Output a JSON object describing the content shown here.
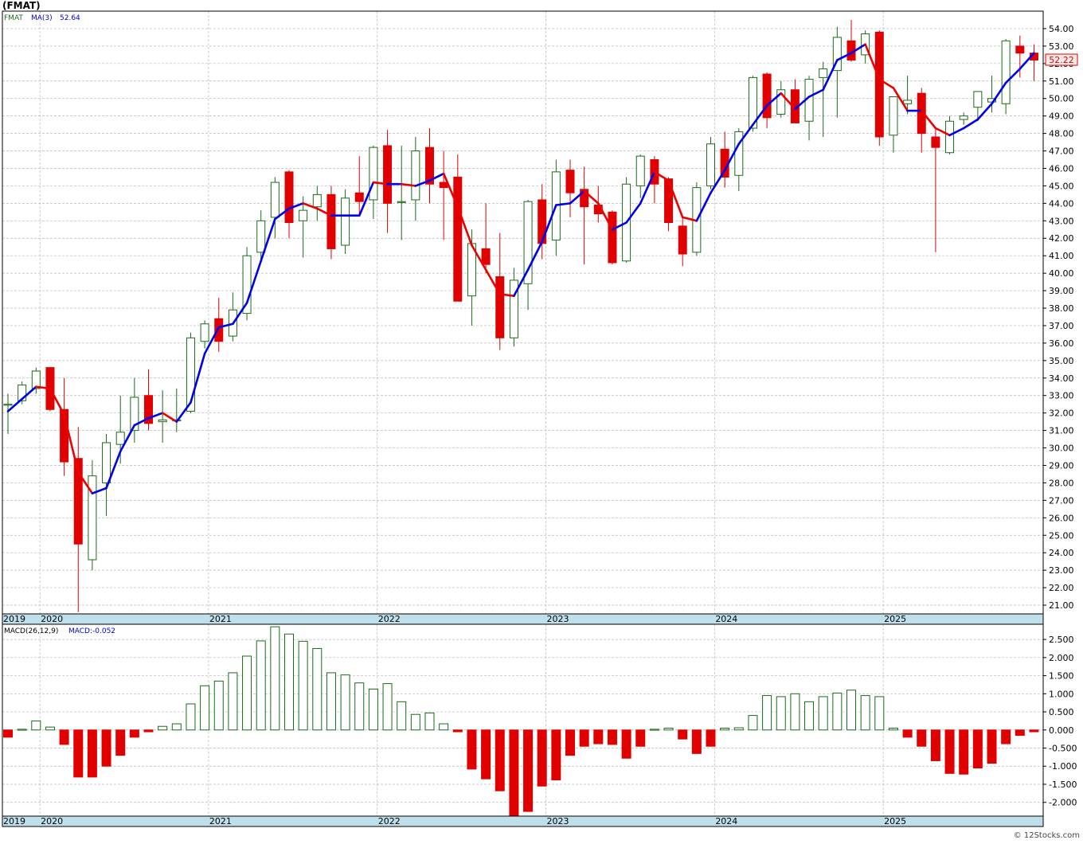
{
  "title": "(FMAT)",
  "credit": "© 12Stocks.com",
  "chart_data": [
    {
      "type": "candlestick",
      "panel": "price",
      "ticker_label": "FMAT",
      "indicator_label": "MA(3)",
      "indicator_value": "52.64",
      "last_price": "52.22",
      "y_ticks": [
        "21.00",
        "22.00",
        "23.00",
        "24.00",
        "25.00",
        "26.00",
        "27.00",
        "28.00",
        "29.00",
        "30.00",
        "31.00",
        "32.00",
        "33.00",
        "34.00",
        "35.00",
        "36.00",
        "37.00",
        "38.00",
        "39.00",
        "40.00",
        "41.00",
        "42.00",
        "43.00",
        "44.00",
        "45.00",
        "46.00",
        "47.00",
        "48.00",
        "49.00",
        "50.00",
        "51.00",
        "52.00",
        "53.00",
        "54.00"
      ],
      "ylim": [
        20.5,
        55.0
      ],
      "x_labels": [
        "2019",
        "2020",
        "2021",
        "2022",
        "2023",
        "2024",
        "2025"
      ],
      "x_label_index": [
        0,
        3,
        15,
        27,
        39,
        51,
        63
      ],
      "grid": true,
      "colors": {
        "up": "#1a6b1a",
        "down": "#e00000",
        "ma_up": "#0000ee",
        "ma_down": "#ee0000"
      },
      "candles": [
        {
          "o": 32.5,
          "h": 33.1,
          "l": 30.8,
          "c": 32.5
        },
        {
          "o": 32.7,
          "h": 33.8,
          "l": 32.5,
          "c": 33.6
        },
        {
          "o": 33.4,
          "h": 34.6,
          "l": 33.1,
          "c": 34.4
        },
        {
          "o": 34.6,
          "h": 34.6,
          "l": 32.1,
          "c": 32.2
        },
        {
          "o": 32.2,
          "h": 34.0,
          "l": 28.4,
          "c": 29.2
        },
        {
          "o": 29.4,
          "h": 31.2,
          "l": 20.6,
          "c": 24.5
        },
        {
          "o": 23.6,
          "h": 29.3,
          "l": 23.0,
          "c": 28.4
        },
        {
          "o": 28.0,
          "h": 30.8,
          "l": 26.1,
          "c": 30.3
        },
        {
          "o": 30.2,
          "h": 33.0,
          "l": 29.1,
          "c": 30.9
        },
        {
          "o": 31.0,
          "h": 34.0,
          "l": 30.3,
          "c": 32.9
        },
        {
          "o": 33.0,
          "h": 34.5,
          "l": 31.0,
          "c": 31.4
        },
        {
          "o": 31.5,
          "h": 33.3,
          "l": 30.3,
          "c": 31.6
        },
        {
          "o": 31.6,
          "h": 33.4,
          "l": 30.9,
          "c": 31.6
        },
        {
          "o": 32.1,
          "h": 36.6,
          "l": 32.0,
          "c": 36.3
        },
        {
          "o": 36.1,
          "h": 37.3,
          "l": 35.7,
          "c": 37.1
        },
        {
          "o": 37.4,
          "h": 38.6,
          "l": 35.5,
          "c": 36.1
        },
        {
          "o": 36.4,
          "h": 38.9,
          "l": 36.1,
          "c": 37.9
        },
        {
          "o": 37.7,
          "h": 41.5,
          "l": 37.3,
          "c": 41.0
        },
        {
          "o": 41.2,
          "h": 43.6,
          "l": 40.6,
          "c": 43.0
        },
        {
          "o": 43.2,
          "h": 45.5,
          "l": 42.0,
          "c": 45.2
        },
        {
          "o": 45.8,
          "h": 45.9,
          "l": 42.0,
          "c": 42.9
        },
        {
          "o": 43.0,
          "h": 44.4,
          "l": 40.9,
          "c": 43.6
        },
        {
          "o": 43.8,
          "h": 45.0,
          "l": 43.0,
          "c": 44.5
        },
        {
          "o": 44.5,
          "h": 45.0,
          "l": 40.8,
          "c": 41.4
        },
        {
          "o": 41.6,
          "h": 44.8,
          "l": 41.1,
          "c": 44.3
        },
        {
          "o": 44.6,
          "h": 46.7,
          "l": 43.3,
          "c": 44.1
        },
        {
          "o": 44.2,
          "h": 47.3,
          "l": 43.1,
          "c": 47.2
        },
        {
          "o": 47.3,
          "h": 48.2,
          "l": 42.3,
          "c": 44.0
        },
        {
          "o": 44.1,
          "h": 47.3,
          "l": 41.9,
          "c": 44.1
        },
        {
          "o": 44.2,
          "h": 47.8,
          "l": 43.0,
          "c": 47.0
        },
        {
          "o": 47.2,
          "h": 48.3,
          "l": 44.0,
          "c": 45.1
        },
        {
          "o": 45.2,
          "h": 47.0,
          "l": 41.9,
          "c": 44.9
        },
        {
          "o": 45.5,
          "h": 46.8,
          "l": 38.6,
          "c": 38.4
        },
        {
          "o": 38.7,
          "h": 42.5,
          "l": 37.0,
          "c": 41.7
        },
        {
          "o": 41.4,
          "h": 44.0,
          "l": 40.0,
          "c": 40.5
        },
        {
          "o": 39.8,
          "h": 42.3,
          "l": 35.6,
          "c": 36.3
        },
        {
          "o": 36.3,
          "h": 40.3,
          "l": 35.8,
          "c": 39.6
        },
        {
          "o": 39.4,
          "h": 44.2,
          "l": 37.9,
          "c": 44.1
        },
        {
          "o": 44.2,
          "h": 45.1,
          "l": 40.8,
          "c": 41.7
        },
        {
          "o": 41.9,
          "h": 46.5,
          "l": 41.0,
          "c": 45.8
        },
        {
          "o": 45.9,
          "h": 46.5,
          "l": 43.2,
          "c": 44.6
        },
        {
          "o": 44.8,
          "h": 46.1,
          "l": 40.5,
          "c": 43.8
        },
        {
          "o": 43.9,
          "h": 45.0,
          "l": 42.9,
          "c": 43.4
        },
        {
          "o": 43.5,
          "h": 43.6,
          "l": 40.5,
          "c": 40.6
        },
        {
          "o": 40.7,
          "h": 45.5,
          "l": 40.6,
          "c": 45.1
        },
        {
          "o": 45.0,
          "h": 46.8,
          "l": 44.3,
          "c": 46.7
        },
        {
          "o": 46.5,
          "h": 46.7,
          "l": 44.0,
          "c": 45.1
        },
        {
          "o": 45.4,
          "h": 45.5,
          "l": 42.4,
          "c": 42.9
        },
        {
          "o": 42.7,
          "h": 43.2,
          "l": 40.4,
          "c": 41.1
        },
        {
          "o": 41.2,
          "h": 45.2,
          "l": 41.0,
          "c": 44.9
        },
        {
          "o": 45.0,
          "h": 47.8,
          "l": 44.8,
          "c": 47.4
        },
        {
          "o": 47.1,
          "h": 48.1,
          "l": 44.9,
          "c": 45.5
        },
        {
          "o": 45.6,
          "h": 48.3,
          "l": 44.7,
          "c": 48.1
        },
        {
          "o": 48.3,
          "h": 51.3,
          "l": 48.1,
          "c": 51.2
        },
        {
          "o": 51.4,
          "h": 51.5,
          "l": 48.3,
          "c": 48.9
        },
        {
          "o": 49.1,
          "h": 51.0,
          "l": 48.9,
          "c": 50.5
        },
        {
          "o": 50.5,
          "h": 51.1,
          "l": 48.6,
          "c": 48.6
        },
        {
          "o": 48.7,
          "h": 51.3,
          "l": 47.6,
          "c": 51.1
        },
        {
          "o": 51.2,
          "h": 52.1,
          "l": 47.8,
          "c": 51.7
        },
        {
          "o": 51.6,
          "h": 54.1,
          "l": 48.9,
          "c": 53.5
        },
        {
          "o": 53.3,
          "h": 54.5,
          "l": 52.1,
          "c": 52.2
        },
        {
          "o": 52.5,
          "h": 53.9,
          "l": 52.0,
          "c": 53.7
        },
        {
          "o": 53.8,
          "h": 53.9,
          "l": 47.3,
          "c": 47.8
        },
        {
          "o": 47.9,
          "h": 50.1,
          "l": 46.9,
          "c": 50.1
        },
        {
          "o": 49.7,
          "h": 51.3,
          "l": 49.1,
          "c": 49.9
        },
        {
          "o": 50.3,
          "h": 50.6,
          "l": 46.9,
          "c": 48.0
        },
        {
          "o": 47.8,
          "h": 48.4,
          "l": 41.2,
          "c": 47.2
        },
        {
          "o": 46.9,
          "h": 49.0,
          "l": 46.8,
          "c": 48.7
        },
        {
          "o": 48.8,
          "h": 49.2,
          "l": 48.5,
          "c": 49.0
        },
        {
          "o": 49.5,
          "h": 50.3,
          "l": 48.7,
          "c": 50.4
        },
        {
          "o": 49.8,
          "h": 51.3,
          "l": 49.2,
          "c": 50.0
        },
        {
          "o": 49.7,
          "h": 53.4,
          "l": 49.1,
          "c": 53.3
        },
        {
          "o": 53.0,
          "h": 53.6,
          "l": 51.2,
          "c": 52.6
        },
        {
          "o": 52.6,
          "h": 53.1,
          "l": 51.0,
          "c": 52.2
        }
      ],
      "ma": [
        32.1,
        32.8,
        33.5,
        33.4,
        31.9,
        28.6,
        27.4,
        27.7,
        29.8,
        31.3,
        31.7,
        32.0,
        31.5,
        32.6,
        35.4,
        36.9,
        37.1,
        38.3,
        40.7,
        43.1,
        43.7,
        44.0,
        43.7,
        43.3,
        43.3,
        43.3,
        45.2,
        45.1,
        45.1,
        45.0,
        45.3,
        45.7,
        43.8,
        41.6,
        40.2,
        38.8,
        38.7,
        40.2,
        41.8,
        43.9,
        44.0,
        44.7,
        44.0,
        42.5,
        42.9,
        44.0,
        45.8,
        45.3,
        43.2,
        43.0,
        44.6,
        45.9,
        47.4,
        48.5,
        49.6,
        50.3,
        49.4,
        50.1,
        50.5,
        52.2,
        52.6,
        53.1,
        51.1,
        50.6,
        49.3,
        49.3,
        48.3,
        47.9,
        48.3,
        48.8,
        49.7,
        50.9,
        51.7,
        52.6
      ]
    },
    {
      "type": "bar",
      "panel": "macd",
      "indicator_label": "MACD(26,12,9)",
      "indicator_value": "MACD:-0.052",
      "y_ticks": [
        "-2.000",
        "-1.500",
        "-1.000",
        "-0.500",
        "0.000",
        "0.500",
        "1.000",
        "1.500",
        "2.000",
        "2.500"
      ],
      "ylim": [
        -2.38,
        2.92
      ],
      "x_labels": [
        "2019",
        "2020",
        "2021",
        "2022",
        "2023",
        "2024",
        "2025"
      ],
      "x_label_index": [
        0,
        3,
        15,
        27,
        39,
        51,
        63
      ],
      "grid": true,
      "values": [
        -0.2,
        0.02,
        0.25,
        0.08,
        -0.4,
        -1.3,
        -1.3,
        -1.0,
        -0.7,
        -0.2,
        -0.05,
        0.1,
        0.17,
        0.72,
        1.22,
        1.35,
        1.58,
        2.04,
        2.46,
        2.85,
        2.65,
        2.45,
        2.25,
        1.58,
        1.52,
        1.3,
        1.13,
        1.28,
        0.78,
        0.43,
        0.47,
        0.17,
        -0.05,
        -1.08,
        -1.35,
        -1.68,
        -2.38,
        -2.25,
        -1.55,
        -1.38,
        -0.7,
        -0.45,
        -0.38,
        -0.4,
        -0.78,
        -0.45,
        0.02,
        0.05,
        -0.25,
        -0.65,
        -0.45,
        0.05,
        0.06,
        0.4,
        0.95,
        0.92,
        1.0,
        0.78,
        0.92,
        1.02,
        1.1,
        0.95,
        0.92,
        0.05,
        -0.2,
        -0.45,
        -0.85,
        -1.2,
        -1.22,
        -1.05,
        -0.92,
        -0.38,
        -0.15,
        -0.05
      ]
    }
  ]
}
